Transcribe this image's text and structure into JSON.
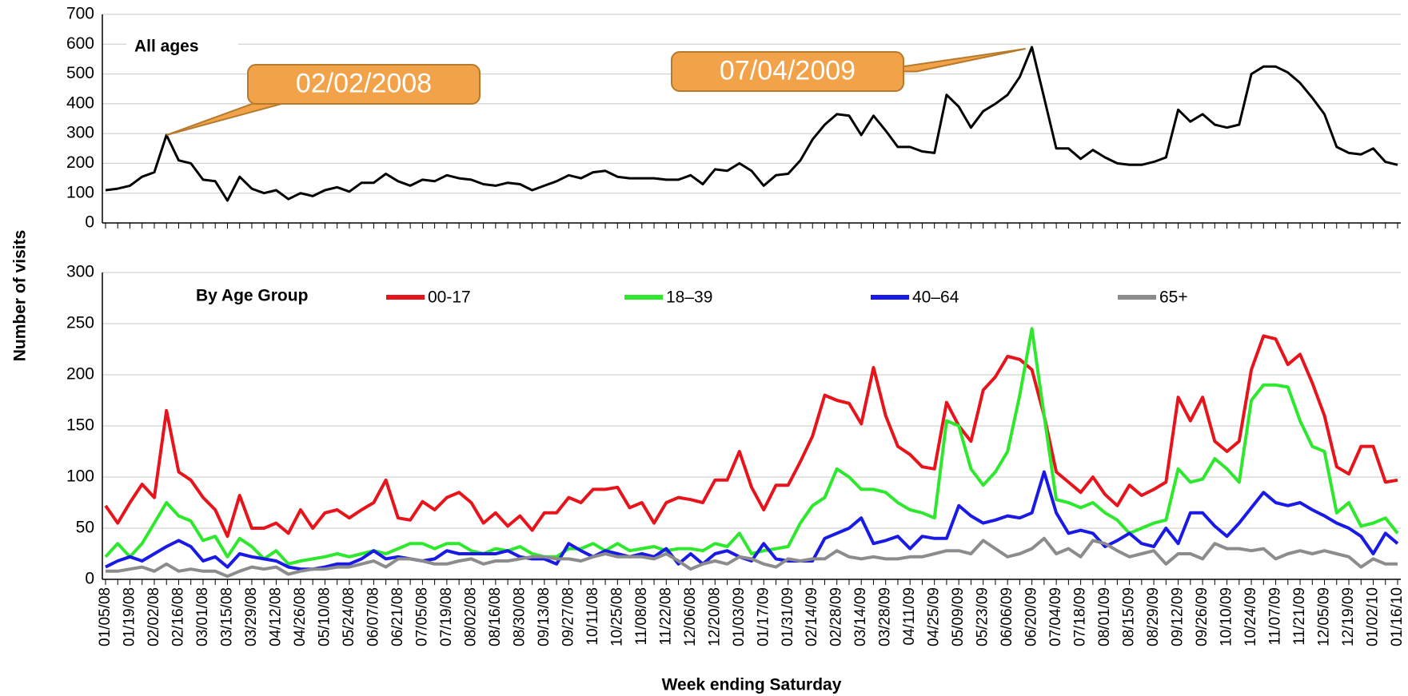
{
  "axis_labels": {
    "y": "Number of visits",
    "x": "Week ending Saturday"
  },
  "chart_data": [
    {
      "type": "line",
      "annotation": "All ages",
      "color": "#000000",
      "ylim": [
        0,
        700
      ],
      "yticks": [
        0,
        100,
        200,
        300,
        400,
        500,
        600,
        700
      ],
      "grid": true,
      "callouts": [
        "02/02/2008",
        "07/04/2009"
      ],
      "values": [
        110,
        115,
        125,
        155,
        170,
        295,
        210,
        200,
        145,
        140,
        75,
        155,
        115,
        100,
        110,
        80,
        100,
        90,
        110,
        120,
        105,
        135,
        135,
        165,
        140,
        125,
        145,
        140,
        160,
        150,
        145,
        130,
        125,
        135,
        130,
        110,
        125,
        140,
        160,
        150,
        170,
        175,
        155,
        150,
        150,
        150,
        145,
        145,
        160,
        130,
        180,
        175,
        200,
        175,
        125,
        160,
        165,
        210,
        280,
        330,
        365,
        360,
        295,
        360,
        310,
        255,
        255,
        240,
        235,
        430,
        390,
        320,
        375,
        400,
        430,
        490,
        590,
        420,
        250,
        250,
        215,
        245,
        220,
        200,
        195,
        195,
        205,
        220,
        380,
        340,
        365,
        330,
        320,
        330,
        500,
        525,
        525,
        505,
        470,
        420,
        365,
        255,
        235,
        230,
        250,
        205,
        195
      ]
    },
    {
      "type": "line",
      "legend_title": "By Age Group",
      "ylim": [
        0,
        300
      ],
      "yticks": [
        0,
        50,
        100,
        150,
        200,
        250,
        300
      ],
      "grid": true,
      "categories": [
        "01/05/08",
        null,
        "01/19/08",
        null,
        "02/02/08",
        null,
        "02/16/08",
        null,
        "03/01/08",
        null,
        "03/15/08",
        null,
        "03/29/08",
        null,
        "04/12/08",
        null,
        "04/26/08",
        null,
        "05/10/08",
        null,
        "05/24/08",
        null,
        "06/07/08",
        null,
        "06/21/08",
        null,
        "07/05/08",
        null,
        "07/19/08",
        null,
        "08/02/08",
        null,
        "08/16/08",
        null,
        "08/30/08",
        null,
        "09/13/08",
        null,
        "09/27/08",
        null,
        "10/11/08",
        null,
        "10/25/08",
        null,
        "11/08/08",
        null,
        "11/22/08",
        null,
        "12/06/08",
        null,
        "12/20/08",
        null,
        "01/03/09",
        null,
        "01/17/09",
        null,
        "01/31/09",
        null,
        "02/14/09",
        null,
        "02/28/09",
        null,
        "03/14/09",
        null,
        "03/28/09",
        null,
        "04/11/09",
        null,
        "04/25/09",
        null,
        "05/09/09",
        null,
        "05/23/09",
        null,
        "06/06/09",
        null,
        "06/20/09",
        null,
        "07/04/09",
        null,
        "07/18/09",
        null,
        "08/01/09",
        null,
        "08/15/09",
        null,
        "08/29/09",
        null,
        "09/12/09",
        null,
        "09/26/09",
        null,
        "10/10/09",
        null,
        "10/24/09",
        null,
        "11/07/09",
        null,
        "11/21/09",
        null,
        "12/05/09",
        null,
        "12/19/09",
        null,
        "01/02/10",
        null,
        "01/16/10"
      ],
      "series": [
        {
          "name": "00-17",
          "color": "#e8141b",
          "values": [
            72,
            55,
            75,
            93,
            80,
            165,
            105,
            97,
            80,
            68,
            42,
            82,
            50,
            50,
            55,
            45,
            68,
            50,
            65,
            68,
            60,
            68,
            75,
            97,
            60,
            58,
            76,
            68,
            80,
            85,
            75,
            55,
            65,
            52,
            62,
            48,
            65,
            65,
            80,
            75,
            88,
            88,
            90,
            70,
            75,
            55,
            75,
            80,
            78,
            75,
            97,
            97,
            125,
            90,
            68,
            92,
            92,
            115,
            140,
            180,
            175,
            172,
            152,
            207,
            160,
            130,
            122,
            110,
            108,
            173,
            150,
            135,
            185,
            198,
            218,
            215,
            205,
            160,
            105,
            95,
            85,
            100,
            83,
            72,
            92,
            82,
            88,
            95,
            178,
            155,
            178,
            135,
            125,
            135,
            205,
            238,
            235,
            210,
            220,
            192,
            160,
            110,
            103,
            130,
            130,
            95,
            97
          ]
        },
        {
          "name": "18–39",
          "color": "#2ee82e",
          "values": [
            22,
            35,
            22,
            35,
            55,
            75,
            62,
            57,
            38,
            42,
            22,
            40,
            32,
            20,
            28,
            15,
            18,
            20,
            22,
            25,
            22,
            25,
            28,
            25,
            30,
            35,
            35,
            30,
            35,
            35,
            28,
            25,
            30,
            28,
            32,
            25,
            22,
            22,
            30,
            30,
            35,
            28,
            35,
            28,
            30,
            32,
            28,
            30,
            30,
            28,
            35,
            32,
            45,
            25,
            28,
            30,
            32,
            55,
            72,
            80,
            108,
            100,
            88,
            88,
            85,
            75,
            68,
            65,
            60,
            155,
            150,
            108,
            92,
            105,
            125,
            180,
            245,
            160,
            78,
            75,
            70,
            75,
            65,
            58,
            45,
            50,
            55,
            58,
            108,
            95,
            98,
            118,
            108,
            95,
            175,
            190,
            190,
            188,
            155,
            130,
            125,
            65,
            75,
            52,
            55,
            60,
            45
          ]
        },
        {
          "name": "40–64",
          "color": "#1a1ae6",
          "values": [
            12,
            18,
            22,
            18,
            25,
            32,
            38,
            32,
            18,
            22,
            12,
            25,
            22,
            20,
            18,
            12,
            10,
            10,
            12,
            15,
            15,
            20,
            28,
            20,
            22,
            20,
            18,
            20,
            28,
            25,
            25,
            25,
            25,
            28,
            22,
            20,
            20,
            15,
            35,
            28,
            22,
            28,
            25,
            22,
            25,
            22,
            30,
            15,
            25,
            15,
            25,
            28,
            22,
            18,
            35,
            20,
            18,
            18,
            18,
            40,
            45,
            50,
            60,
            35,
            38,
            42,
            30,
            42,
            40,
            40,
            72,
            62,
            55,
            58,
            62,
            60,
            65,
            105,
            65,
            45,
            48,
            45,
            32,
            38,
            45,
            35,
            32,
            50,
            35,
            65,
            65,
            52,
            42,
            55,
            70,
            85,
            75,
            72,
            75,
            68,
            62,
            55,
            50,
            42,
            25,
            45,
            35
          ]
        },
        {
          "name": "65+",
          "color": "#8c8c8c",
          "values": [
            8,
            8,
            10,
            12,
            8,
            15,
            8,
            10,
            8,
            8,
            3,
            8,
            12,
            10,
            12,
            5,
            8,
            10,
            10,
            12,
            12,
            15,
            18,
            12,
            20,
            20,
            18,
            15,
            15,
            18,
            20,
            15,
            18,
            18,
            20,
            22,
            22,
            20,
            20,
            18,
            22,
            25,
            22,
            22,
            22,
            20,
            25,
            18,
            10,
            15,
            18,
            15,
            22,
            20,
            15,
            12,
            20,
            18,
            20,
            20,
            28,
            22,
            20,
            22,
            20,
            20,
            22,
            22,
            25,
            28,
            28,
            25,
            38,
            30,
            22,
            25,
            30,
            40,
            25,
            30,
            22,
            38,
            35,
            28,
            22,
            25,
            28,
            15,
            25,
            25,
            20,
            35,
            30,
            30,
            28,
            30,
            20,
            25,
            28,
            25,
            28,
            25,
            22,
            12,
            20,
            15,
            15
          ]
        }
      ]
    }
  ]
}
